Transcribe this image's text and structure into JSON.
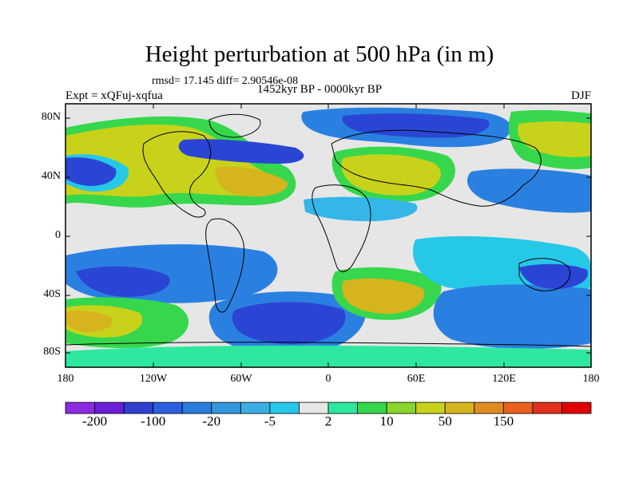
{
  "title": "Height perturbation at 500 hPa (in m)",
  "stats_line": "rmsd= 17.145 diff= 2.90546e-08",
  "experiment": "Expt = xQFuj-xqfua",
  "period": "1452kyr BP - 0000kyr BP",
  "season": "DJF",
  "lat_ticks": [
    "80N",
    "40N",
    "0",
    "40S",
    "80S"
  ],
  "lon_ticks": [
    "180",
    "120W",
    "60W",
    "0",
    "60E",
    "120E",
    "180"
  ],
  "colorbar": {
    "colors": [
      "#8a2be2",
      "#6a1fd6",
      "#2f3fd0",
      "#2c5fe0",
      "#2a7de0",
      "#3296dc",
      "#3aaee0",
      "#26c8e8",
      "#e6e6e6",
      "#2ee8a0",
      "#36d74c",
      "#88d62a",
      "#c8d21a",
      "#d6b41e",
      "#e08c20",
      "#e8601e",
      "#e23020",
      "#e00000"
    ],
    "labels": [
      "-200",
      "-100",
      "-20",
      "-5",
      "2",
      "10",
      "50",
      "150"
    ]
  },
  "palette": {
    "purple": "#5a1fd0",
    "blue": "#2a45d4",
    "med_blue": "#2a80e0",
    "lt_blue": "#34b6e8",
    "cyan": "#26c8e8",
    "gray": "#e6e6e6",
    "mint": "#2ee8a0",
    "green": "#36d74c",
    "ygreen": "#88d62a",
    "yellow": "#c8d21a",
    "gold": "#d6b41e",
    "orange": "#e08c20"
  }
}
